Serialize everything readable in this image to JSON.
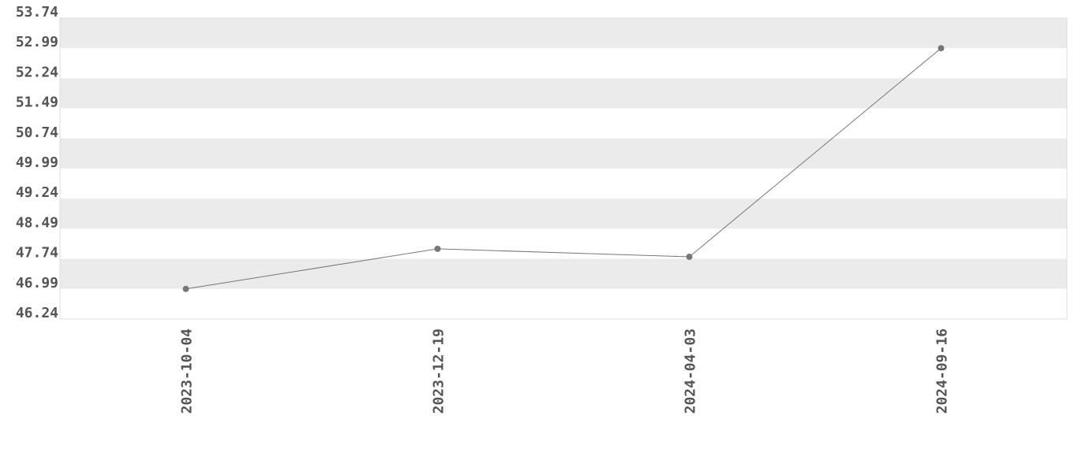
{
  "chart_data": {
    "type": "line",
    "title": "",
    "xlabel": "",
    "ylabel": "",
    "categories": [
      "2023-10-04",
      "2023-12-19",
      "2024-04-03",
      "2024-09-16"
    ],
    "values": [
      46.99,
      47.99,
      47.79,
      52.99
    ],
    "ylim": [
      46.24,
      53.74
    ],
    "yticks": [
      "46.24",
      "46.99",
      "47.74",
      "48.49",
      "49.24",
      "49.99",
      "50.74",
      "51.49",
      "52.24",
      "52.99",
      "53.74"
    ],
    "grid": "alternating horizontal bands",
    "colors": {
      "line": "#777777",
      "marker": "#777777",
      "band": "#ebebeb",
      "text": "#555555"
    }
  }
}
